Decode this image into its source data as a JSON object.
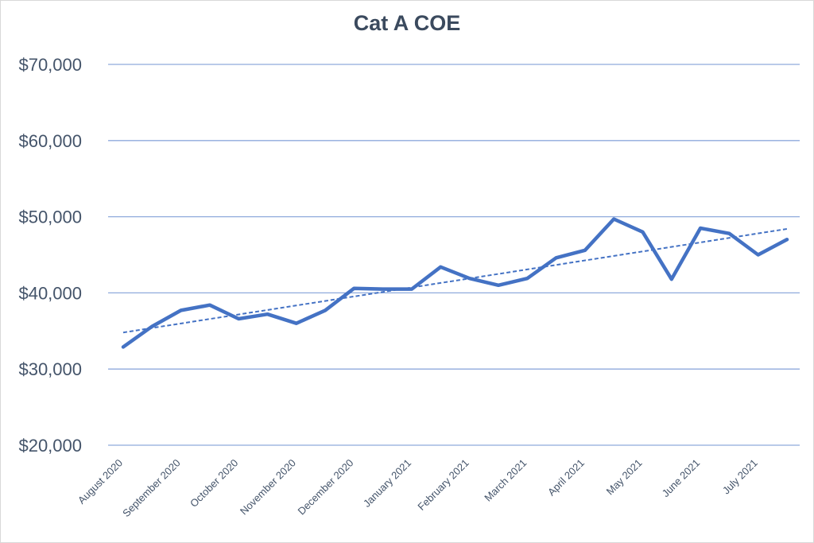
{
  "chart_data": {
    "type": "line",
    "title": "Cat A COE",
    "xlabel": "",
    "ylabel": "",
    "ylim": [
      20000,
      70000
    ],
    "yticks": [
      "$20,000",
      "$30,000",
      "$40,000",
      "$50,000",
      "$60,000",
      "$70,000"
    ],
    "ytick_values": [
      20000,
      30000,
      40000,
      50000,
      60000,
      70000
    ],
    "x_labels": [
      "August 2020",
      "September 2020",
      "October 2020",
      "November 2020",
      "December 2020",
      "January 2021",
      "February 2021",
      "March 2021",
      "April 2021",
      "May 2021",
      "June 2021",
      "July 2021"
    ],
    "grid": true,
    "legend": "none",
    "colors": {
      "line": "#4472c4",
      "grid": "#8faadc",
      "text": "#44546a"
    },
    "series": [
      {
        "values": [
          32900,
          35600,
          37700,
          38400,
          36600,
          37200,
          36000,
          37700,
          40600,
          40500,
          40500,
          43400,
          41900,
          41000,
          41900,
          44600,
          45600,
          49700,
          48000,
          41800,
          48500,
          47800,
          45000,
          47000
        ]
      }
    ],
    "trendline": {
      "type": "linear",
      "style": "dashed",
      "start": 34800,
      "end": 48400
    }
  }
}
